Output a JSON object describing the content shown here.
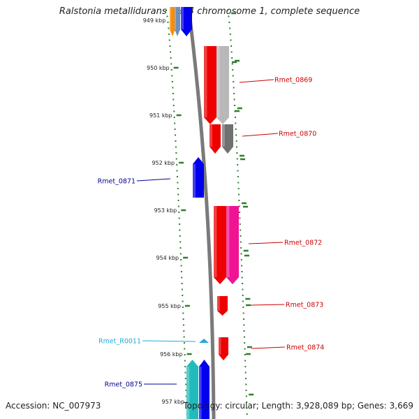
{
  "title": "Ralstonia metallidurans CH34 chromosome 1, complete sequence",
  "accession": "Accession: NC_007973",
  "topology": "Topology: circular; Length: 3,928,089 bp; Genes: 3,669",
  "colors": {
    "backbone": "#7a7a7a",
    "tick": "#2e7d2e",
    "red": "#ee0000",
    "blue": "#0000ee",
    "grey": "#b8b8b8",
    "pink": "#ee1493",
    "cyan": "#22bbbb",
    "orange": "#ff8c00",
    "rna_label": "#22aadd",
    "label_red": "#cc0000",
    "label_blue": "#000099"
  },
  "scale_labels": [
    "949 kbp",
    "950 kbp",
    "951 kbp",
    "952 kbp",
    "953 kbp",
    "954 kbp",
    "955 kbp",
    "956 kbp",
    "957 kbp"
  ],
  "gene_labels": [
    "Rmet_0869",
    "Rmet_0870",
    "Rmet_0871",
    "Rmet_0872",
    "Rmet_0873",
    "Rmet_R0011",
    "Rmet_0874",
    "Rmet_0875"
  ]
}
